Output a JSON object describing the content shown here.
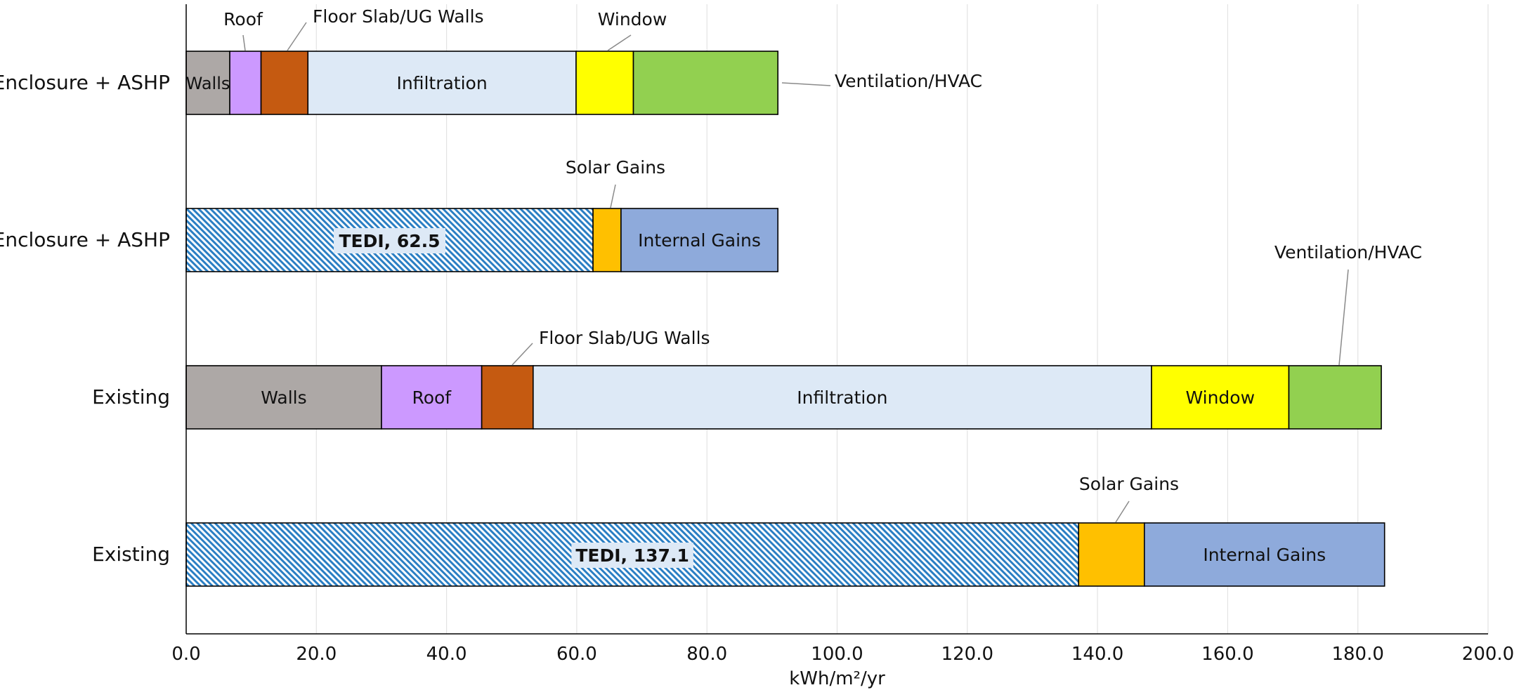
{
  "chart_data": {
    "type": "bar",
    "orientation": "horizontal",
    "stacked": true,
    "xlabel": "kWh/m²/yr",
    "xlim": [
      0,
      200
    ],
    "xticks": [
      "0.0",
      "20.0",
      "40.0",
      "60.0",
      "80.0",
      "100.0",
      "120.0",
      "140.0",
      "160.0",
      "180.0",
      "200.0"
    ],
    "grid": "vertical",
    "legend": "none",
    "colors": {
      "Walls": "#ada8a6",
      "Roof": "#cc99ff",
      "Floor Slab/UG Walls": "#c55a11",
      "Infiltration": "#dde9f6",
      "Window": "#ffff00",
      "Ventilation/HVAC": "#92d050",
      "TEDI": "#2b7fc4",
      "Solar Gains": "#ffc000",
      "Internal Gains": "#8eaadb"
    },
    "bars": [
      {
        "category": "Enclosure + ASHP",
        "kind": "losses",
        "segments": [
          {
            "name": "Walls",
            "value": 6.7,
            "label": "Walls",
            "label_placement": "inside"
          },
          {
            "name": "Roof",
            "value": 4.8,
            "label": "Roof",
            "label_placement": "callout-above"
          },
          {
            "name": "Floor Slab/UG Walls",
            "value": 7.2,
            "label": "Floor Slab/UG Walls",
            "label_placement": "callout-above"
          },
          {
            "name": "Infiltration",
            "value": 41.2,
            "label": "Infiltration",
            "label_placement": "inside"
          },
          {
            "name": "Window",
            "value": 8.8,
            "label": "Window",
            "label_placement": "callout-above"
          },
          {
            "name": "Ventilation/HVAC",
            "value": 22.2,
            "label": "Ventilation/HVAC",
            "label_placement": "callout-right"
          }
        ]
      },
      {
        "category": "Enclosure + ASHP",
        "kind": "gains",
        "segments": [
          {
            "name": "TEDI",
            "value": 62.5,
            "label": "TEDI, 62.5",
            "label_placement": "inside",
            "pattern": "hatch"
          },
          {
            "name": "Solar Gains",
            "value": 4.3,
            "label": "Solar Gains",
            "label_placement": "callout-above"
          },
          {
            "name": "Internal Gains",
            "value": 24.1,
            "label": "Internal Gains",
            "label_placement": "inside"
          }
        ]
      },
      {
        "category": "Existing",
        "kind": "losses",
        "segments": [
          {
            "name": "Walls",
            "value": 30.0,
            "label": "Walls",
            "label_placement": "inside"
          },
          {
            "name": "Roof",
            "value": 15.4,
            "label": "Roof",
            "label_placement": "inside"
          },
          {
            "name": "Floor Slab/UG Walls",
            "value": 7.9,
            "label": "Floor Slab/UG Walls",
            "label_placement": "callout-above"
          },
          {
            "name": "Infiltration",
            "value": 95.0,
            "label": "Infiltration",
            "label_placement": "inside"
          },
          {
            "name": "Window",
            "value": 21.1,
            "label": "Window",
            "label_placement": "inside"
          },
          {
            "name": "Ventilation/HVAC",
            "value": 14.2,
            "label": "Ventilation/HVAC",
            "label_placement": "callout-above"
          }
        ]
      },
      {
        "category": "Existing",
        "kind": "gains",
        "segments": [
          {
            "name": "TEDI",
            "value": 137.1,
            "label": "TEDI, 137.1",
            "label_placement": "inside",
            "pattern": "hatch"
          },
          {
            "name": "Solar Gains",
            "value": 10.1,
            "label": "Solar Gains",
            "label_placement": "callout-above"
          },
          {
            "name": "Internal Gains",
            "value": 36.9,
            "label": "Internal Gains",
            "label_placement": "inside"
          }
        ]
      }
    ]
  }
}
